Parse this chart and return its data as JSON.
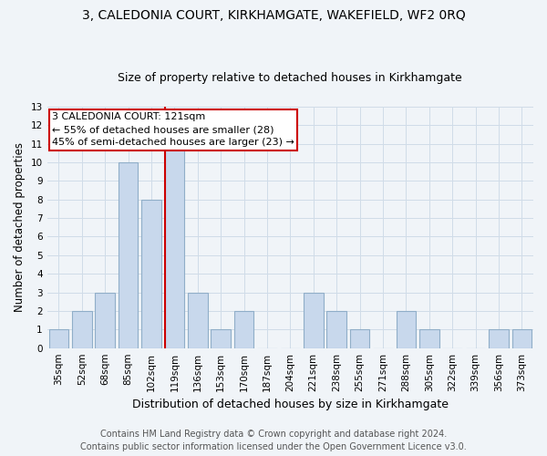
{
  "title": "3, CALEDONIA COURT, KIRKHAMGATE, WAKEFIELD, WF2 0RQ",
  "subtitle": "Size of property relative to detached houses in Kirkhamgate",
  "xlabel": "Distribution of detached houses by size in Kirkhamgate",
  "ylabel": "Number of detached properties",
  "categories": [
    "35sqm",
    "52sqm",
    "68sqm",
    "85sqm",
    "102sqm",
    "119sqm",
    "136sqm",
    "153sqm",
    "170sqm",
    "187sqm",
    "204sqm",
    "221sqm",
    "238sqm",
    "255sqm",
    "271sqm",
    "288sqm",
    "305sqm",
    "322sqm",
    "339sqm",
    "356sqm",
    "373sqm"
  ],
  "values": [
    1,
    2,
    3,
    10,
    8,
    11,
    3,
    1,
    2,
    0,
    0,
    3,
    2,
    1,
    0,
    2,
    1,
    0,
    0,
    1,
    1
  ],
  "bar_color": "#c8d8ec",
  "bar_edgecolor": "#90aec8",
  "vline_index": 5,
  "vline_color": "#cc0000",
  "annotation_title": "3 CALEDONIA COURT: 121sqm",
  "annotation_line1": "← 55% of detached houses are smaller (28)",
  "annotation_line2": "45% of semi-detached houses are larger (23) →",
  "annotation_box_facecolor": "#ffffff",
  "annotation_box_edgecolor": "#cc0000",
  "ylim": [
    0,
    13
  ],
  "yticks": [
    0,
    1,
    2,
    3,
    4,
    5,
    6,
    7,
    8,
    9,
    10,
    11,
    12,
    13
  ],
  "footer1": "Contains HM Land Registry data © Crown copyright and database right 2024.",
  "footer2": "Contains public sector information licensed under the Open Government Licence v3.0.",
  "background_color": "#f0f4f8",
  "plot_bg_color": "#f0f4f8",
  "grid_color": "#d0dce8",
  "title_fontsize": 10,
  "subtitle_fontsize": 9,
  "tick_fontsize": 7.5,
  "ylabel_fontsize": 8.5,
  "xlabel_fontsize": 9,
  "footer_fontsize": 7,
  "annot_fontsize": 8
}
